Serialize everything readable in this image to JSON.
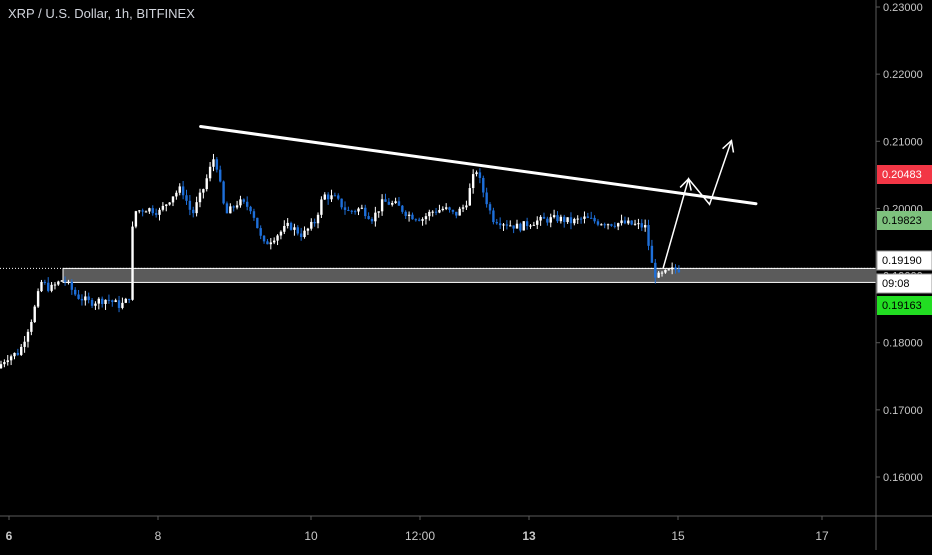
{
  "chart_data": {
    "type": "candlestick",
    "title": "XRP / U.S. Dollar, 1h, BITFINEX",
    "colors": {
      "background": "#000000",
      "up_candle": "#ffffff",
      "down_candle": "#1e6fd9",
      "trendline": "#ffffff",
      "zone_fill": "#6b6b6b",
      "axis_text": "#c8c8c8",
      "badge_red": "#f23645",
      "badge_green_light": "#7ec27e",
      "badge_green": "#22dd22"
    },
    "ylim": [
      0.155,
      0.231
    ],
    "y_ticks": [
      "0.23000",
      "0.22000",
      "0.21000",
      "0.20000",
      "0.19000",
      "0.18000",
      "0.17000",
      "0.16000"
    ],
    "x_ticks": [
      "6",
      "8",
      "10",
      "12:00",
      "13",
      "15",
      "17"
    ],
    "x_tick_bold": [
      "6",
      "13"
    ],
    "price_badges": [
      {
        "label": "0.20483",
        "value": 0.20483,
        "color": "red"
      },
      {
        "label": "0.19823",
        "value": 0.19823,
        "color": "green_light"
      },
      {
        "label": "0.19190",
        "value": 0.1919,
        "color": "white"
      },
      {
        "label": "09:08",
        "value": 0.1897,
        "color": "white"
      },
      {
        "label": "0.19163",
        "value": 0.19163,
        "color": "green"
      }
    ],
    "support_zone": [
      0.18898,
      0.19107
    ],
    "last_price": 0.19107,
    "resistance_line": {
      "from": {
        "x": 0.229,
        "y": 0.2122
      },
      "to": {
        "x": 0.863,
        "y": 0.2007
      }
    },
    "projection_arrow": [
      {
        "x": 0.757,
        "y": 0.1911
      },
      {
        "x": 0.786,
        "y": 0.2044
      },
      {
        "x": 0.81,
        "y": 0.2006
      },
      {
        "x": 0.835,
        "y": 0.2101
      }
    ],
    "price_path": [
      [
        0.0,
        0.1762
      ],
      [
        0.01,
        0.1778
      ],
      [
        0.025,
        0.1786
      ],
      [
        0.04,
        0.184
      ],
      [
        0.05,
        0.189
      ],
      [
        0.06,
        0.188
      ],
      [
        0.075,
        0.1895
      ],
      [
        0.09,
        0.187
      ],
      [
        0.105,
        0.186
      ],
      [
        0.125,
        0.1865
      ],
      [
        0.14,
        0.1855
      ],
      [
        0.15,
        0.1865
      ],
      [
        0.155,
        0.1995
      ],
      [
        0.17,
        0.2
      ],
      [
        0.185,
        0.1995
      ],
      [
        0.2,
        0.202
      ],
      [
        0.21,
        0.203
      ],
      [
        0.222,
        0.199
      ],
      [
        0.235,
        0.203
      ],
      [
        0.248,
        0.208
      ],
      [
        0.26,
        0.199
      ],
      [
        0.275,
        0.201
      ],
      [
        0.29,
        0.2
      ],
      [
        0.303,
        0.1945
      ],
      [
        0.318,
        0.196
      ],
      [
        0.333,
        0.1975
      ],
      [
        0.348,
        0.196
      ],
      [
        0.362,
        0.198
      ],
      [
        0.372,
        0.202
      ],
      [
        0.385,
        0.2015
      ],
      [
        0.4,
        0.1995
      ],
      [
        0.415,
        0.2
      ],
      [
        0.428,
        0.1985
      ],
      [
        0.44,
        0.201
      ],
      [
        0.455,
        0.2005
      ],
      [
        0.47,
        0.199
      ],
      [
        0.485,
        0.1985
      ],
      [
        0.495,
        0.1995
      ],
      [
        0.51,
        0.2
      ],
      [
        0.522,
        0.199
      ],
      [
        0.534,
        0.2005
      ],
      [
        0.546,
        0.206
      ],
      [
        0.553,
        0.203
      ],
      [
        0.565,
        0.1985
      ],
      [
        0.58,
        0.1978
      ],
      [
        0.595,
        0.1972
      ],
      [
        0.61,
        0.198
      ],
      [
        0.625,
        0.1983
      ],
      [
        0.64,
        0.1985
      ],
      [
        0.655,
        0.198
      ],
      [
        0.67,
        0.1985
      ],
      [
        0.685,
        0.198
      ],
      [
        0.7,
        0.1978
      ],
      [
        0.715,
        0.1978
      ],
      [
        0.73,
        0.1975
      ],
      [
        0.74,
        0.1972
      ],
      [
        0.746,
        0.192
      ],
      [
        0.752,
        0.1897
      ],
      [
        0.76,
        0.1902
      ],
      [
        0.77,
        0.1908
      ],
      [
        0.776,
        0.191
      ]
    ]
  }
}
